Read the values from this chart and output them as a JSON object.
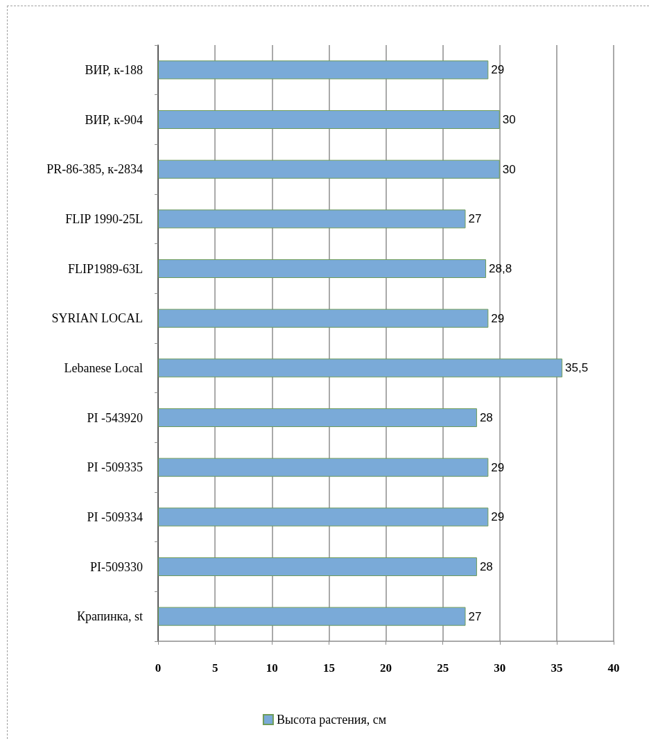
{
  "chart_data": {
    "type": "bar",
    "orientation": "horizontal",
    "categories": [
      "ВИР, к-188",
      "ВИР, к-904",
      "PR-86-385, к-2834",
      "FLIP 1990-25L",
      "FLIP1989-63L",
      "SYRIAN LOCAL",
      "Lebanese Local",
      "PI -543920",
      "PI -509335",
      "PI -509334",
      "PI-509330",
      "Крапинка, st"
    ],
    "series": [
      {
        "name": "Высота растения, см",
        "color": "#7aaad8",
        "values": [
          29,
          30,
          30,
          27,
          28.8,
          29,
          35.5,
          28,
          29,
          29,
          28,
          27
        ],
        "value_labels": [
          "29",
          "30",
          "30",
          "27",
          "28,8",
          "29",
          "35,5",
          "28",
          "29",
          "29",
          "28",
          "27"
        ]
      }
    ],
    "xlim": [
      0,
      40
    ],
    "xticks": [
      0,
      5,
      10,
      15,
      20,
      25,
      30,
      35,
      40
    ],
    "grid": "x",
    "legend": "bottom"
  }
}
